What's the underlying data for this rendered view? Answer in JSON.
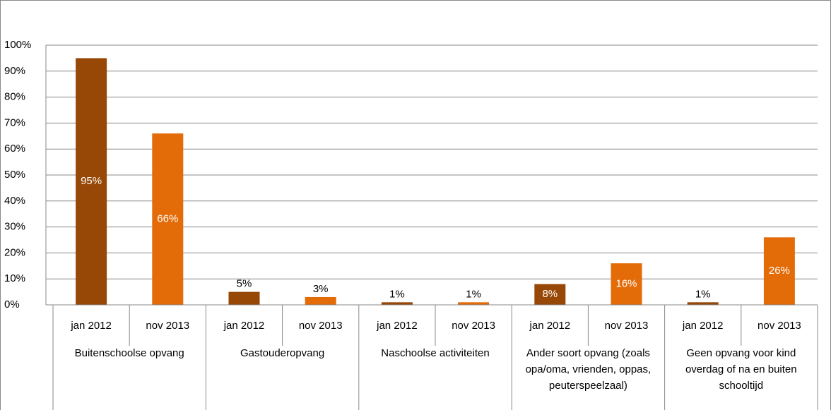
{
  "chart_data": {
    "type": "bar",
    "categories": [
      "Buitenschoolse opvang",
      "Gastouderopvang",
      "Naschoolse activiteiten",
      "Ander soort opvang (zoals opa/oma, vrienden, oppas, peuterspeelzaal)",
      "Geen opvang voor kind overdag of na en buiten schooltijd"
    ],
    "series": [
      {
        "name": "jan 2012",
        "color": "#974706",
        "values": [
          95,
          5,
          1,
          8,
          1
        ],
        "value_labels": [
          "95%",
          "5%",
          "1%",
          "8%",
          "1%"
        ]
      },
      {
        "name": "nov 2013",
        "color": "#e36c09",
        "values": [
          66,
          3,
          1,
          16,
          26
        ],
        "value_labels": [
          "66%",
          "3%",
          "1%",
          "16%",
          "26%"
        ]
      }
    ],
    "ylim": [
      0,
      100
    ],
    "yticks": [
      {
        "value": 0,
        "label": "0%"
      },
      {
        "value": 10,
        "label": "10%"
      },
      {
        "value": 20,
        "label": "20%"
      },
      {
        "value": 30,
        "label": "30%"
      },
      {
        "value": 40,
        "label": "40%"
      },
      {
        "value": 50,
        "label": "50%"
      },
      {
        "value": 60,
        "label": "60%"
      },
      {
        "value": 70,
        "label": "70%"
      },
      {
        "value": 80,
        "label": "80%"
      },
      {
        "value": 90,
        "label": "90%"
      },
      {
        "value": 100,
        "label": "100%"
      }
    ],
    "grid": true
  }
}
